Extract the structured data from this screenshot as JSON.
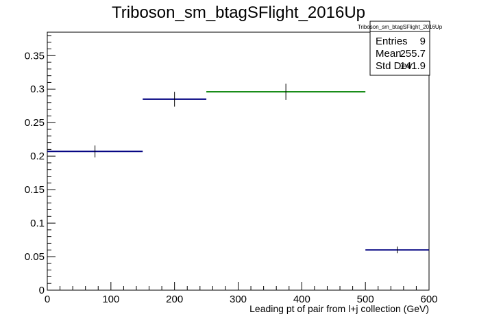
{
  "chart_data": {
    "type": "histogram",
    "title": "Triboson_sm_btagSFlight_2016Up",
    "xlabel": "Leading pt of pair from l+j collection (GeV)",
    "ylabel": "",
    "xlim": [
      0,
      600
    ],
    "ylim": [
      0,
      0.385
    ],
    "x_ticks": [
      "0",
      "100",
      "200",
      "300",
      "400",
      "500",
      "600"
    ],
    "y_ticks": [
      "0",
      "0.05",
      "0.1",
      "0.15",
      "0.2",
      "0.25",
      "0.3",
      "0.35"
    ],
    "grid": false,
    "legend": "none",
    "bins": [
      {
        "x_low": 0,
        "x_high": 150,
        "value": 0.207,
        "error": 0.009,
        "color": "#000080"
      },
      {
        "x_low": 150,
        "x_high": 250,
        "value": 0.285,
        "error": 0.011,
        "color": "#000080"
      },
      {
        "x_low": 250,
        "x_high": 500,
        "value": 0.296,
        "error": 0.012,
        "color": "#008000"
      },
      {
        "x_low": 500,
        "x_high": 600,
        "value": 0.06,
        "error": 0.005,
        "color": "#000080"
      }
    ],
    "stats_box": {
      "title": "Triboson_sm_btagSFlight_2016Up",
      "rows": [
        {
          "label": "Entries",
          "value": "9"
        },
        {
          "label": "Mean",
          "value": "255.7"
        },
        {
          "label": "Std Dev",
          "value": "141.9"
        }
      ]
    }
  }
}
